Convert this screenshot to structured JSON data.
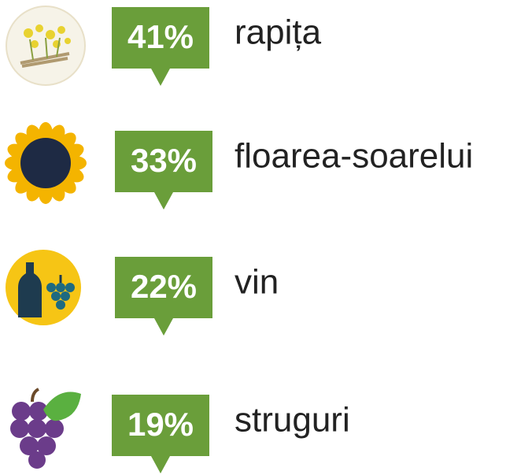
{
  "items": [
    {
      "percent": "41%",
      "label": "rapița"
    },
    {
      "percent": "33%",
      "label": "floarea-soarelui"
    },
    {
      "percent": "22%",
      "label": "vin"
    },
    {
      "percent": "19%",
      "label": "struguri"
    }
  ]
}
